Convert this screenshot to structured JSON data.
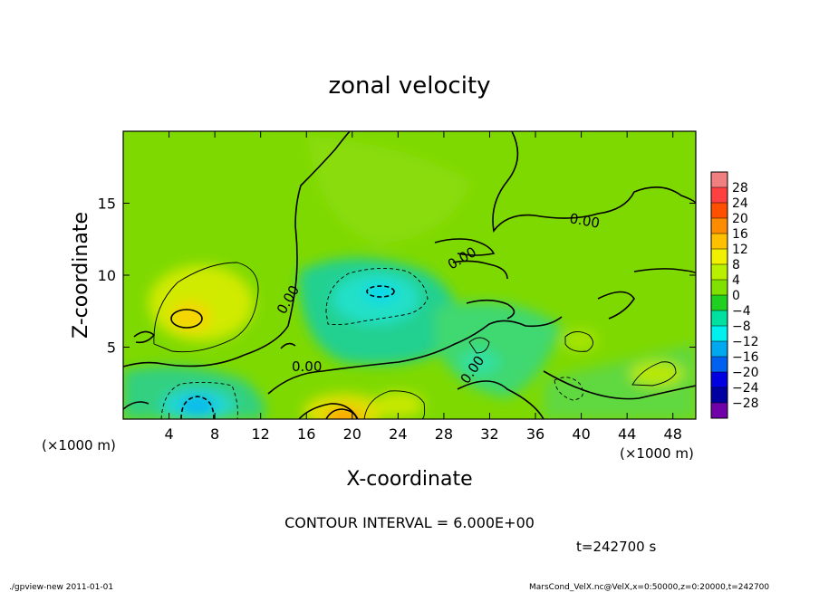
{
  "chart_data": {
    "type": "heatmap",
    "title": "zonal velocity",
    "xlabel": "X-coordinate",
    "ylabel": "Z-coordinate",
    "x_unit_note": "(×1000 m)",
    "y_unit_note": "(×1000 m)",
    "xlim": [
      0,
      50
    ],
    "ylim": [
      0,
      20
    ],
    "x_ticks": [
      4,
      8,
      12,
      16,
      20,
      24,
      28,
      32,
      36,
      40,
      44,
      48
    ],
    "y_ticks": [
      5,
      10,
      15
    ],
    "contour_interval_text": "CONTOUR INTERVAL = 6.000E+00",
    "time_text": "t=242700 s",
    "contour_label": "0.00",
    "colorbar": {
      "levels": [
        -28,
        -24,
        -20,
        -16,
        -12,
        -8,
        -4,
        0,
        4,
        8,
        12,
        16,
        20,
        24,
        28
      ],
      "labels": [
        "28",
        "24",
        "20",
        "16",
        "12",
        "8",
        "4",
        "0",
        "−4",
        "−8",
        "−12",
        "−16",
        "−20",
        "−24",
        "−28"
      ],
      "colors": [
        "#f08080",
        "#ff4040",
        "#ff5000",
        "#ff8c00",
        "#ffc000",
        "#f0f000",
        "#b8f000",
        "#80e000",
        "#20d020",
        "#00e0a0",
        "#00f0f0",
        "#00a8f0",
        "#0060f0",
        "#0000e0",
        "#0000a0",
        "#7000a8"
      ]
    },
    "features": [
      {
        "x": 6,
        "z": 7,
        "value": 14,
        "kind": "max"
      },
      {
        "x": 19,
        "z": 0.5,
        "value": 14,
        "kind": "max"
      },
      {
        "x": 23,
        "z": 1.5,
        "value": 8,
        "kind": "max"
      },
      {
        "x": 46,
        "z": 3,
        "value": 8,
        "kind": "max"
      },
      {
        "x": 41,
        "z": 5.7,
        "value": 7,
        "kind": "max"
      },
      {
        "x": 5.5,
        "z": 1.2,
        "value": -12,
        "kind": "min"
      },
      {
        "x": 22.5,
        "z": 8.7,
        "value": -12,
        "kind": "min"
      },
      {
        "x": 31,
        "z": 5,
        "value": -5,
        "kind": "min"
      }
    ]
  },
  "footer": {
    "left": "./gpview-new  2011-01-01",
    "right": "MarsCond_VelX.nc@VelX,x=0:50000,z=0:20000,t=242700"
  }
}
